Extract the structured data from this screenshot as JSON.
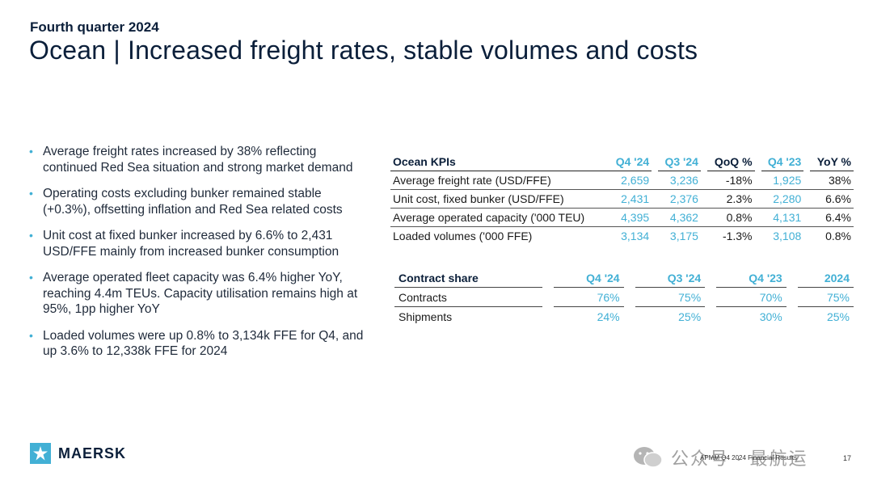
{
  "header": {
    "eyebrow": "Fourth quarter 2024",
    "title": "Ocean | Increased freight rates, stable volumes and costs"
  },
  "bullets": [
    "Average freight rates increased by 38% reflecting continued Red Sea situation and strong market demand",
    "Operating costs excluding bunker remained stable (+0.3%), offsetting inflation and Red Sea related costs",
    "Unit cost at fixed bunker increased by 6.6% to 2,431 USD/FFE mainly from increased bunker consumption",
    "Average operated fleet capacity was 6.4% higher YoY, reaching 4.4m TEUs. Capacity utilisation remains high at 95%, 1pp higher YoY",
    "Loaded volumes were up 0.8% to 3,134k FFE for Q4, and up 3.6% to 12,338k FFE for 2024"
  ],
  "kpi_table": {
    "headers": [
      "Ocean KPIs",
      "Q4 '24",
      "Q3 '24",
      "QoQ %",
      "Q4 '23",
      "YoY %"
    ],
    "rows": [
      [
        "Average freight rate (USD/FFE)",
        "2,659",
        "3,236",
        "-18%",
        "1,925",
        "38%"
      ],
      [
        "Unit cost, fixed bunker (USD/FFE)",
        "2,431",
        "2,376",
        "2.3%",
        "2,280",
        "6.6%"
      ],
      [
        "Average operated capacity ('000 TEU)",
        "4,395",
        "4,362",
        "0.8%",
        "4,131",
        "6.4%"
      ],
      [
        "Loaded volumes ('000 FFE)",
        "3,134",
        "3,175",
        "-1.3%",
        "3,108",
        "0.8%"
      ]
    ]
  },
  "contract_table": {
    "headers": [
      "Contract share",
      "Q4 '24",
      "Q3 '24",
      "Q4 '23",
      "2024"
    ],
    "rows": [
      [
        "Contracts",
        "76%",
        "75%",
        "70%",
        "75%"
      ],
      [
        "Shipments",
        "24%",
        "25%",
        "30%",
        "25%"
      ]
    ]
  },
  "footer": {
    "logo_text": "MAERSK",
    "note": "APMM Q4 2024 Financial Results",
    "page": "17",
    "watermark": "公众号 · 最航运"
  },
  "colors": {
    "accent": "#42b0d5",
    "navy": "#0b1f3a"
  },
  "icons": {
    "logo": "maersk-star-icon",
    "watermark": "wechat-icon"
  }
}
